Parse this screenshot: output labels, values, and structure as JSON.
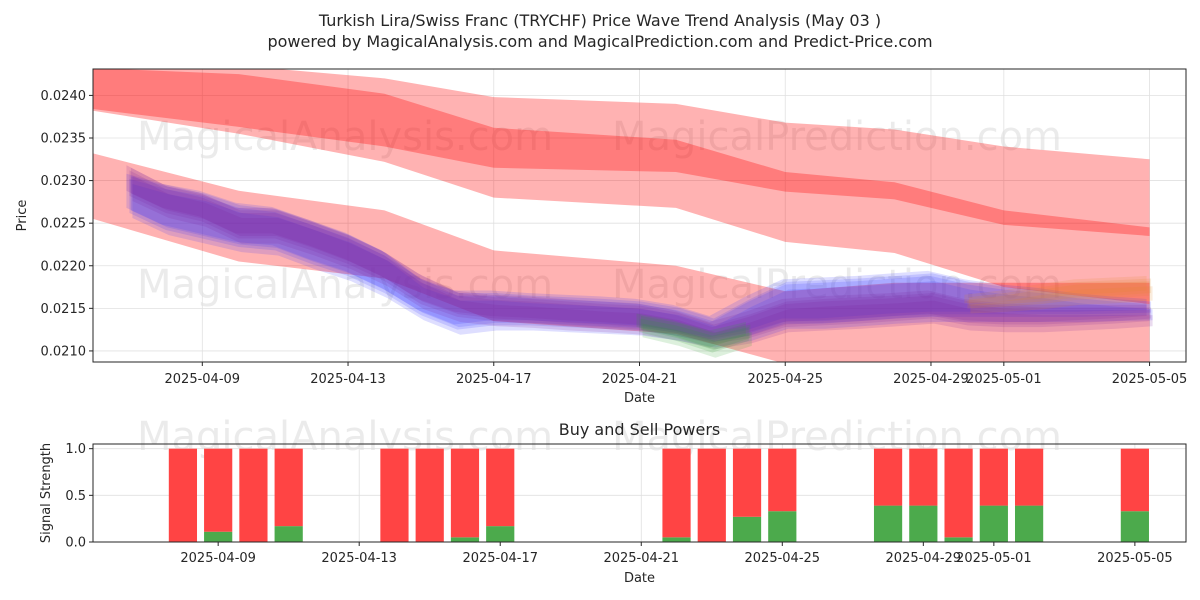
{
  "chart_data": [
    {
      "type": "area",
      "title": "Turkish Lira/Swiss Franc (TRYCHF) Price Wave Trend Analysis (May 03 )",
      "subtitle": "powered by MagicalAnalysis.com and MagicalPrediction.com and Predict-Price.com",
      "xlabel": "Date",
      "ylabel": "Price",
      "x_range": [
        "2025-04-06",
        "2025-05-06"
      ],
      "ylim": [
        0.02087,
        0.02431
      ],
      "x_ticks": [
        "2025-04-09",
        "2025-04-13",
        "2025-04-17",
        "2025-04-21",
        "2025-04-25",
        "2025-04-29",
        "2025-05-01",
        "2025-05-05"
      ],
      "y_ticks": [
        "0.0210",
        "0.0215",
        "0.0220",
        "0.0225",
        "0.0230",
        "0.0235",
        "0.0240"
      ],
      "grid": true,
      "watermarks": [
        "MagicalAnalysis.com",
        "MagicalPrediction.com",
        "MagicalAnalysis.com",
        "MagicalPrediction.com"
      ],
      "colors": {
        "red_band": "#ff0000",
        "blue_band": "#3333ff",
        "purple_band": "#7a1f9e",
        "green_band": "#2ca02c",
        "axes": "#262626",
        "grid": "#e0e0e0"
      },
      "series": [
        {
          "name": "upper wave band",
          "color": "#ff0000",
          "x": [
            "2025-04-06",
            "2025-04-10",
            "2025-04-14",
            "2025-04-17",
            "2025-04-22",
            "2025-04-25",
            "2025-04-28",
            "2025-05-01",
            "2025-05-05"
          ],
          "low": [
            0.02382,
            0.02355,
            0.02322,
            0.0228,
            0.02268,
            0.02228,
            0.02215,
            0.02175,
            0.02155
          ],
          "high": [
            0.02435,
            0.02435,
            0.0242,
            0.02398,
            0.0239,
            0.02368,
            0.0236,
            0.0234,
            0.02325
          ],
          "core_low": [
            0.02384,
            0.02363,
            0.0234,
            0.02315,
            0.0231,
            0.02287,
            0.02278,
            0.02248,
            0.02235
          ],
          "core_high": [
            0.02432,
            0.02425,
            0.02402,
            0.02362,
            0.02348,
            0.0231,
            0.02298,
            0.02265,
            0.02245
          ]
        },
        {
          "name": "lower wave band",
          "color": "#ff0000",
          "x": [
            "2025-04-06",
            "2025-04-10",
            "2025-04-14",
            "2025-04-17",
            "2025-04-22",
            "2025-04-25",
            "2025-04-28",
            "2025-05-01",
            "2025-05-05"
          ],
          "low": [
            0.02255,
            0.02205,
            0.02185,
            0.02135,
            0.0212,
            0.02085,
            0.02085,
            0.02085,
            0.02085
          ],
          "high": [
            0.02332,
            0.02288,
            0.02265,
            0.02218,
            0.022,
            0.0217,
            0.0218,
            0.0218,
            0.0218
          ]
        },
        {
          "name": "blue wave band",
          "color": "#3333ff",
          "x": [
            "2025-04-07",
            "2025-04-08",
            "2025-04-09",
            "2025-04-10",
            "2025-04-11",
            "2025-04-12",
            "2025-04-13",
            "2025-04-14",
            "2025-04-15",
            "2025-04-16",
            "2025-04-17",
            "2025-04-18",
            "2025-04-19",
            "2025-04-20",
            "2025-04-21",
            "2025-04-22",
            "2025-04-23",
            "2025-04-24",
            "2025-04-25",
            "2025-04-26",
            "2025-04-27",
            "2025-04-28",
            "2025-04-29",
            "2025-04-30",
            "2025-05-01",
            "2025-05-02",
            "2025-05-03",
            "2025-05-04",
            "2025-05-05"
          ],
          "low": [
            0.02262,
            0.02242,
            0.02232,
            0.02222,
            0.02218,
            0.02202,
            0.02188,
            0.02168,
            0.02142,
            0.02125,
            0.0213,
            0.0213,
            0.02128,
            0.02126,
            0.02124,
            0.02118,
            0.0211,
            0.02118,
            0.02132,
            0.02132,
            0.02135,
            0.02138,
            0.0214,
            0.0214,
            0.0214,
            0.0214,
            0.0214,
            0.02141,
            0.02142
          ],
          "high": [
            0.02302,
            0.0229,
            0.02282,
            0.02268,
            0.02263,
            0.02248,
            0.02233,
            0.02212,
            0.0218,
            0.02165,
            0.02165,
            0.02162,
            0.0216,
            0.02158,
            0.02155,
            0.02148,
            0.02135,
            0.02158,
            0.02178,
            0.0218,
            0.02182,
            0.02185,
            0.02188,
            0.02178,
            0.02172,
            0.02168,
            0.02162,
            0.02158,
            0.02155
          ]
        },
        {
          "name": "purple wave band",
          "color": "#7a1f9e",
          "x": [
            "2025-04-07",
            "2025-04-08",
            "2025-04-09",
            "2025-04-10",
            "2025-04-11",
            "2025-04-12",
            "2025-04-13",
            "2025-04-14",
            "2025-04-15",
            "2025-04-16",
            "2025-04-17",
            "2025-04-18",
            "2025-04-19",
            "2025-04-20",
            "2025-04-21",
            "2025-04-22",
            "2025-04-23",
            "2025-04-24",
            "2025-04-25",
            "2025-04-26",
            "2025-04-27",
            "2025-04-28",
            "2025-04-29",
            "2025-04-30",
            "2025-05-01",
            "2025-05-02",
            "2025-05-03",
            "2025-05-04",
            "2025-05-05"
          ],
          "low": [
            0.02282,
            0.02262,
            0.02252,
            0.02232,
            0.02232,
            0.02218,
            0.02202,
            0.02182,
            0.02155,
            0.0214,
            0.02135,
            0.02133,
            0.0213,
            0.02128,
            0.02125,
            0.02118,
            0.02108,
            0.02115,
            0.02128,
            0.0213,
            0.02132,
            0.02135,
            0.02138,
            0.0213,
            0.02128,
            0.02128,
            0.0213,
            0.02132,
            0.02135
          ],
          "high": [
            0.02312,
            0.0229,
            0.0228,
            0.02262,
            0.02262,
            0.02248,
            0.02232,
            0.02212,
            0.02185,
            0.02165,
            0.0216,
            0.02158,
            0.02155,
            0.02152,
            0.0215,
            0.02142,
            0.02128,
            0.0214,
            0.02155,
            0.02158,
            0.0216,
            0.02162,
            0.02165,
            0.02155,
            0.0215,
            0.02148,
            0.02148,
            0.02148,
            0.02148
          ]
        },
        {
          "name": "green wave band",
          "color": "#2ca02c",
          "x": [
            "2025-04-21",
            "2025-04-22",
            "2025-04-23",
            "2025-04-24"
          ],
          "low": [
            0.02122,
            0.02112,
            0.02098,
            0.02112
          ],
          "high": [
            0.02138,
            0.0213,
            0.02118,
            0.02128
          ]
        },
        {
          "name": "orange wave band",
          "color": "#e08a2c",
          "x": [
            "2025-04-30",
            "2025-05-01",
            "2025-05-02",
            "2025-05-03",
            "2025-05-04",
            "2025-05-05"
          ],
          "low": [
            0.0215,
            0.02152,
            0.02155,
            0.0216,
            0.02162,
            0.02165
          ],
          "high": [
            0.0216,
            0.02165,
            0.02172,
            0.02178,
            0.0218,
            0.02182
          ]
        }
      ]
    },
    {
      "type": "bar",
      "title": "Buy and Sell Powers",
      "xlabel": "Date",
      "ylabel": "Signal Strength",
      "ylim": [
        0,
        1.05
      ],
      "y_ticks": [
        "0.0",
        "0.5",
        "1.0"
      ],
      "x_ticks": [
        "2025-04-09",
        "2025-04-13",
        "2025-04-17",
        "2025-04-21",
        "2025-04-25",
        "2025-04-29",
        "2025-05-01",
        "2025-05-05"
      ],
      "grid": true,
      "colors": {
        "sell": "#ff4444",
        "buy": "#4caa4c"
      },
      "categories": [
        "2025-04-08",
        "2025-04-09",
        "2025-04-10",
        "2025-04-11",
        "2025-04-14",
        "2025-04-15",
        "2025-04-16",
        "2025-04-17",
        "2025-04-22",
        "2025-04-23",
        "2025-04-24",
        "2025-04-25",
        "2025-04-28",
        "2025-04-29",
        "2025-04-30",
        "2025-05-01",
        "2025-05-02",
        "2025-05-05"
      ],
      "series": [
        {
          "name": "Buy",
          "values": [
            0.0,
            0.11,
            0.0,
            0.17,
            0.0,
            0.0,
            0.05,
            0.17,
            0.05,
            0.0,
            0.27,
            0.33,
            0.39,
            0.39,
            0.05,
            0.39,
            0.39,
            0.33
          ]
        },
        {
          "name": "Sell",
          "values": [
            1.0,
            0.89,
            1.0,
            0.83,
            1.0,
            1.0,
            0.95,
            0.83,
            0.95,
            1.0,
            0.73,
            0.67,
            0.61,
            0.61,
            0.95,
            0.61,
            0.61,
            0.67
          ]
        }
      ]
    }
  ]
}
